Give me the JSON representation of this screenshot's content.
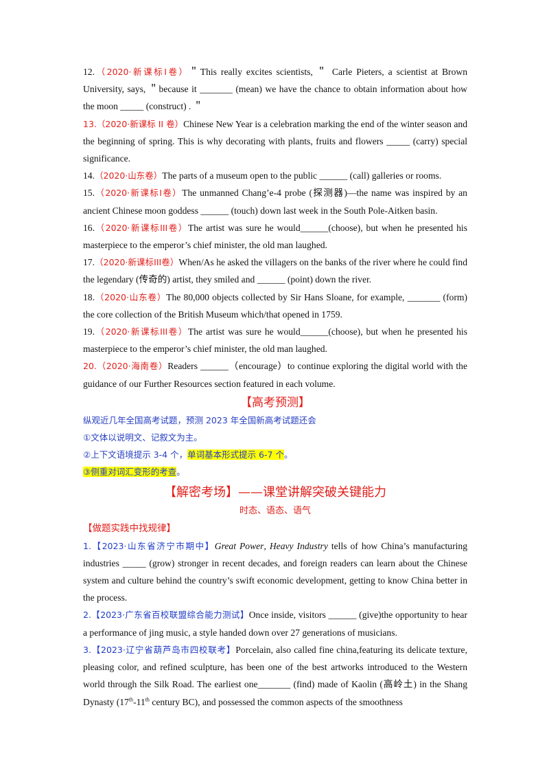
{
  "q12": {
    "num": "12.",
    "src": "（2020·新课标I卷）",
    "text": "＂This really excites scientists, ＂ Carle Pieters, a scientist at Brown University, says, ＂because it _______ (mean) we have the chance to obtain information about how the moon _____ (construct) . ＂"
  },
  "q13": {
    "src": "13.（2020·新课标 II 卷）",
    "text": "Chinese New Year is a celebration marking the end of the winter season and the beginning of spring. This is why decorating with plants, fruits and flowers _____ (carry) special significance."
  },
  "q14": {
    "num": "14.",
    "src": "（2020·山东卷）",
    "text": "The parts of a museum open to the public ______ (call) galleries or rooms."
  },
  "q15": {
    "num": "15.",
    "src": "（2020·新课标I卷）",
    "text": "The unmanned Chang’e-4 probe (探测器)—the name was inspired by an ancient Chinese moon goddess ______ (touch) down last week in the South Pole-Aitken basin."
  },
  "q16": {
    "num": "16.",
    "src": "（2020·新课标III卷）",
    "text": "The artist was sure he would______(choose), but when he presented his masterpiece to the emperor’s chief minister, the old man laughed."
  },
  "q17": {
    "num": "17.",
    "src": "（2020·新课标III卷）",
    "text": "When/As he asked the villagers on the banks of the river where he could find the legendary (传奇的) artist, they smiled and ______ (point) down the river."
  },
  "q18": {
    "num": "18.",
    "src": "（2020·山东卷）",
    "text": "The 80,000 objects collected by Sir Hans Sloane, for example, _______ (form) the core collection of the British Museum which/that opened in 1759."
  },
  "q19": {
    "num": "19.",
    "src": "（2020·新课标III卷）",
    "text": "The artist was sure he would______(choose), but when he presented his masterpiece to the emperor’s chief minister, the old man laughed."
  },
  "q20": {
    "src": "20.（2020·海南卷）",
    "text": "Readers ______（encourage）to continue exploring the digital world with the guidance of our Further Resources section featured in each volume."
  },
  "forecast": {
    "heading": "【高考预测】",
    "intro": "纵观近几年全国高考试题，预测 2023 年全国新高考试题还会",
    "point1": "①文体以说明文、记叙文为主。",
    "point2_a": "②上下文语境提示 3-4 个，",
    "point2_hl": "单词基本形式提示 6-7 个",
    "point2_end": "。",
    "point3_hl": "③侧重对词汇变形的考查",
    "point3_end": "。"
  },
  "section": {
    "heading": "【解密考场】——课堂讲解突破关键能力",
    "sub": "时态、语态、语气",
    "label": "【做题实践中找规律】"
  },
  "p1": {
    "src": "1.【2023·山东省济宁市期中】",
    "title_a": "Great Power",
    "sep": ", ",
    "title_b": "Heavy Industry",
    "text": " tells of how China’s manufacturing industries _____ (grow) stronger in recent decades, and foreign readers can learn about the Chinese system and culture behind the country’s swift economic development, getting to know China better in the process."
  },
  "p2": {
    "src": "2.【2023·广东省百校联盟综合能力测试】",
    "text": "Once inside, visitors ______ (give)the opportunity to hear a performance of jing music, a style handed down over 27 generations of musicians."
  },
  "p3": {
    "src": "3.【2023·辽宁省葫芦岛市四校联考】",
    "text_a": "Porcelain, also called fine china,featuring its delicate texture, pleasing color, and refined sculpture, has been one of the best artworks introduced to the Western world through the Silk Road. The earliest one_______ (find) made of Kaolin (高岭土) in the Shang Dynasty (17",
    "sup1": "th",
    "text_b": "-11",
    "sup2": "th",
    "text_c": " century BC), and possessed the common aspects of the smoothness"
  }
}
